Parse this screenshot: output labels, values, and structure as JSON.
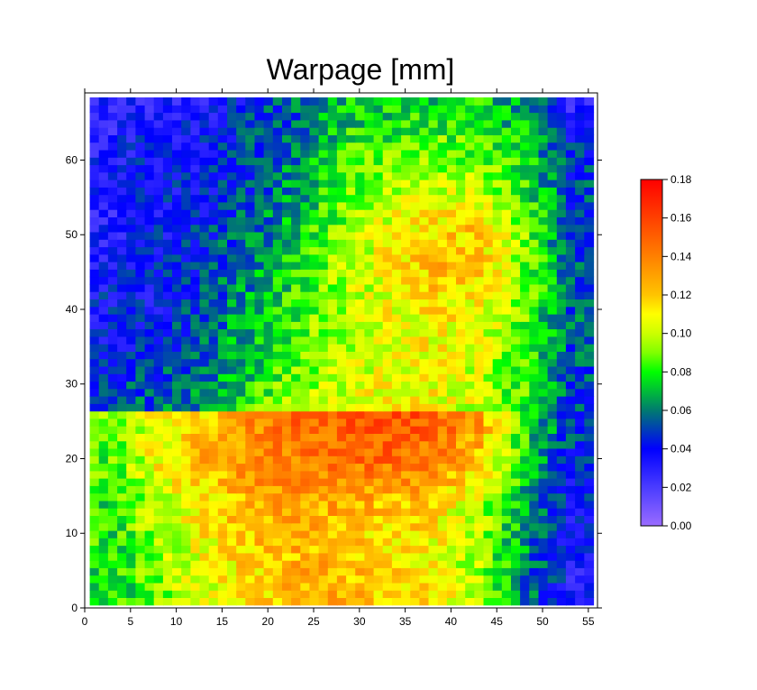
{
  "chart_data": {
    "type": "heatmap",
    "title": "Warpage [mm]",
    "xlabel": "",
    "ylabel": "",
    "xlim": [
      0,
      56
    ],
    "ylim": [
      0,
      69
    ],
    "x_ticks": [
      "0",
      "5",
      "10",
      "15",
      "20",
      "25",
      "30",
      "35",
      "40",
      "45",
      "50",
      "55"
    ],
    "y_ticks": [
      "0",
      "10",
      "20",
      "30",
      "40",
      "50",
      "60"
    ],
    "grid": false,
    "cell_count": {
      "x": 55,
      "y": 68
    },
    "boundary_y": 26,
    "note_values": "coarse grid of mean warpage (mm); columns at x centers, rows at y centers (top to bottom)",
    "coarse_x": [
      3,
      8,
      13,
      18,
      23,
      28,
      33,
      38,
      43,
      48,
      53
    ],
    "coarse_y_upper": [
      66,
      61,
      56,
      51,
      46,
      41,
      36,
      31,
      27
    ],
    "coarse_values_upper": [
      [
        0.03,
        0.035,
        0.035,
        0.045,
        0.055,
        0.07,
        0.075,
        0.075,
        0.075,
        0.065,
        0.03
      ],
      [
        0.035,
        0.04,
        0.04,
        0.05,
        0.06,
        0.08,
        0.085,
        0.09,
        0.085,
        0.075,
        0.045
      ],
      [
        0.035,
        0.04,
        0.04,
        0.05,
        0.065,
        0.085,
        0.095,
        0.1,
        0.1,
        0.08,
        0.05
      ],
      [
        0.03,
        0.04,
        0.045,
        0.055,
        0.07,
        0.09,
        0.105,
        0.115,
        0.12,
        0.09,
        0.05
      ],
      [
        0.035,
        0.04,
        0.05,
        0.06,
        0.075,
        0.095,
        0.11,
        0.125,
        0.12,
        0.09,
        0.055
      ],
      [
        0.04,
        0.04,
        0.05,
        0.065,
        0.08,
        0.095,
        0.105,
        0.115,
        0.11,
        0.09,
        0.055
      ],
      [
        0.04,
        0.045,
        0.055,
        0.07,
        0.085,
        0.095,
        0.105,
        0.11,
        0.105,
        0.085,
        0.055
      ],
      [
        0.045,
        0.05,
        0.06,
        0.075,
        0.09,
        0.1,
        0.105,
        0.105,
        0.1,
        0.085,
        0.05
      ],
      [
        0.05,
        0.055,
        0.065,
        0.08,
        0.095,
        0.105,
        0.11,
        0.11,
        0.1,
        0.08,
        0.05
      ]
    ],
    "coarse_y_lower": [
      24,
      19,
      14,
      9,
      4
    ],
    "coarse_values_lower": [
      [
        0.09,
        0.11,
        0.12,
        0.135,
        0.145,
        0.15,
        0.155,
        0.15,
        0.13,
        0.08,
        0.05
      ],
      [
        0.085,
        0.11,
        0.125,
        0.135,
        0.14,
        0.145,
        0.145,
        0.14,
        0.12,
        0.075,
        0.045
      ],
      [
        0.08,
        0.1,
        0.115,
        0.125,
        0.13,
        0.13,
        0.125,
        0.12,
        0.1,
        0.07,
        0.04
      ],
      [
        0.08,
        0.095,
        0.11,
        0.12,
        0.125,
        0.12,
        0.115,
        0.11,
        0.095,
        0.065,
        0.035
      ],
      [
        0.075,
        0.09,
        0.105,
        0.115,
        0.125,
        0.125,
        0.12,
        0.11,
        0.095,
        0.06,
        0.035
      ]
    ],
    "colorbar": {
      "range": [
        0,
        0.18
      ],
      "tick_labels": [
        "0.00",
        "0.02",
        "0.04",
        "0.06",
        "0.08",
        "0.10",
        "0.12",
        "0.14",
        "0.16",
        "0.18"
      ],
      "stops": [
        {
          "v": 0.0,
          "c": "#9a6cff"
        },
        {
          "v": 0.02,
          "c": "#4a3cff"
        },
        {
          "v": 0.04,
          "c": "#0000ff"
        },
        {
          "v": 0.06,
          "c": "#007a70"
        },
        {
          "v": 0.08,
          "c": "#00ff00"
        },
        {
          "v": 0.09,
          "c": "#80ff00"
        },
        {
          "v": 0.1,
          "c": "#ccff00"
        },
        {
          "v": 0.11,
          "c": "#ffff00"
        },
        {
          "v": 0.12,
          "c": "#ffc400"
        },
        {
          "v": 0.14,
          "c": "#ff8000"
        },
        {
          "v": 0.16,
          "c": "#ff4000"
        },
        {
          "v": 0.18,
          "c": "#ff0000"
        }
      ]
    }
  }
}
